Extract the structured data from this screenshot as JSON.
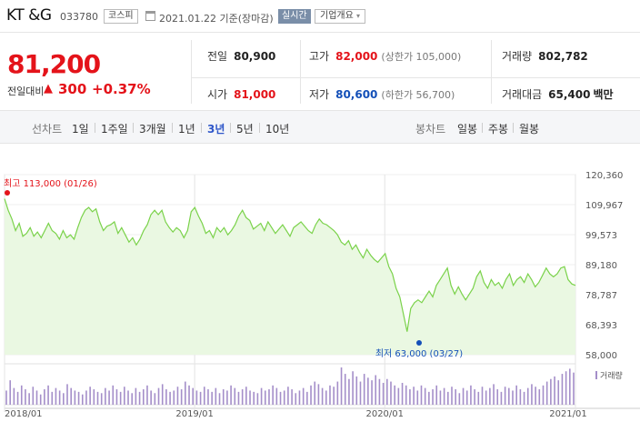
{
  "stock": {
    "name": "KT &G",
    "code": "033780",
    "market": "코스피",
    "date": "2021.01.22",
    "date_suffix": "기준(장마감)",
    "realtime": "실시간",
    "company_info": "기업개요"
  },
  "price": {
    "current": "81,200",
    "change_label": "전일대비",
    "change": "300",
    "change_pct": "+0.37%"
  },
  "summary": {
    "prev_label": "전일",
    "prev": "80,900",
    "high_label": "고가",
    "high": "82,000",
    "upper_limit": "(상한가 105,000)",
    "volume_label": "거래량",
    "volume": "802,782",
    "open_label": "시가",
    "open": "81,000",
    "low_label": "저가",
    "low": "80,600",
    "lower_limit": "(하한가 56,700)",
    "amount_label": "거래대금",
    "amount": "65,400",
    "amount_unit": "백만"
  },
  "colors": {
    "up": "#e4131a",
    "down": "#1450b8",
    "line": "#7ad24a",
    "fill": "#eaf8e2",
    "volume": "#a48ec9"
  },
  "tabs": {
    "line_label": "선차트",
    "periods": [
      "1일",
      "1주일",
      "3개월",
      "1년",
      "3년",
      "5년",
      "10년"
    ],
    "active_period": "3년",
    "candle_label": "봉차트",
    "candles": [
      "일봉",
      "주봉",
      "월봉"
    ]
  },
  "chart_data": {
    "type": "area",
    "ylim": [
      58000,
      120360
    ],
    "yticks": [
      "120,360",
      "109,967",
      "99,573",
      "89,180",
      "78,787",
      "68,393",
      "58,000"
    ],
    "xticks": [
      "2018/01",
      "2019/01",
      "2020/01",
      "2021/01"
    ],
    "max_label": "최고 113,000 (01/26)",
    "min_label": "최저 63,000 (03/27)",
    "volume_label": "거래량",
    "series": [
      {
        "values": [
          112000,
          108000,
          105000,
          101000,
          103500,
          99000,
          100000,
          102000,
          99000,
          100500,
          98500,
          101000,
          103500,
          101000,
          100000,
          98000,
          101000,
          98500,
          99500,
          98000,
          102000,
          105500,
          108000,
          109000,
          107500,
          108500,
          104000,
          101000,
          102500,
          103000,
          104000,
          100000,
          102000,
          99500,
          97000,
          98500,
          96000,
          98000,
          101000,
          103000,
          106500,
          108000,
          106500,
          108000,
          104000,
          102000,
          100500,
          102000,
          101000,
          98500,
          101000,
          107500,
          109000,
          106000,
          103500,
          100000,
          101000,
          98500,
          102000,
          100500,
          102000,
          99500,
          101000,
          103000,
          106000,
          108000,
          105500,
          104500,
          101500,
          102500,
          103500,
          101000,
          104000,
          102000,
          100000,
          101500,
          103000,
          101000,
          99000,
          102000,
          103000,
          104000,
          102500,
          101000,
          100000,
          103000,
          105000,
          103500,
          103000,
          102000,
          101000,
          99500,
          97000,
          96000,
          97500,
          94500,
          96000,
          93500,
          91500,
          94500,
          92500,
          91000,
          90000,
          91500,
          93000,
          88500,
          86000,
          81000,
          78000,
          72000,
          66000,
          74000,
          76000,
          77000,
          76000,
          78000,
          80000,
          78000,
          82000,
          84000,
          86000,
          88000,
          82000,
          79000,
          81500,
          79000,
          77000,
          79000,
          81000,
          85000,
          87000,
          83000,
          81000,
          84000,
          82000,
          83000,
          81000,
          84000,
          86000,
          82000,
          84000,
          85000,
          83000,
          86000,
          84000,
          81500,
          83000,
          85500,
          88000,
          86000,
          85000,
          86000,
          88000,
          88500,
          84000,
          82500,
          82000
        ]
      },
      {
        "name": "거래량",
        "values": [
          22,
          38,
          26,
          20,
          30,
          24,
          18,
          28,
          22,
          16,
          24,
          30,
          20,
          26,
          22,
          18,
          32,
          26,
          22,
          20,
          16,
          22,
          28,
          24,
          20,
          18,
          26,
          22,
          30,
          24,
          20,
          28,
          22,
          18,
          26,
          20,
          24,
          30,
          22,
          18,
          26,
          32,
          24,
          20,
          22,
          28,
          24,
          36,
          30,
          26,
          22,
          20,
          28,
          24,
          20,
          26,
          18,
          24,
          22,
          30,
          26,
          20,
          24,
          28,
          22,
          20,
          18,
          26,
          22,
          24,
          30,
          26,
          20,
          22,
          28,
          24,
          18,
          22,
          26,
          20,
          30,
          36,
          32,
          26,
          22,
          30,
          28,
          36,
          58,
          48,
          40,
          52,
          44,
          36,
          48,
          42,
          38,
          46,
          40,
          34,
          40,
          36,
          30,
          26,
          34,
          30,
          24,
          28,
          22,
          30,
          26,
          20,
          24,
          30,
          22,
          26,
          20,
          28,
          24,
          18,
          26,
          22,
          30,
          24,
          20,
          28,
          22,
          26,
          32,
          24,
          20,
          28,
          26,
          22,
          30,
          24,
          20,
          26,
          32,
          28,
          24,
          30,
          36,
          40,
          44,
          38,
          48,
          52,
          56,
          50
        ]
      }
    ]
  }
}
